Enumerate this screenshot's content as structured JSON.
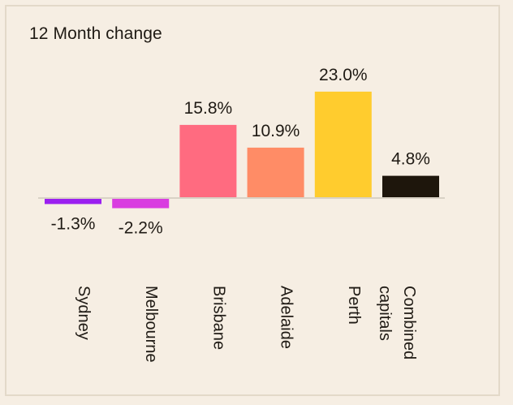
{
  "chart_data": {
    "type": "bar",
    "title": "12 Month change",
    "categories": [
      "Sydney",
      "Melbourne",
      "Brisbane",
      "Adelaide",
      "Perth",
      "Combined capitals"
    ],
    "category_lines": [
      [
        "Sydney"
      ],
      [
        "Melbourne"
      ],
      [
        "Brisbane"
      ],
      [
        "Adelaide"
      ],
      [
        "Perth"
      ],
      [
        "Combined",
        "capitals"
      ]
    ],
    "values": [
      -1.3,
      -2.2,
      15.8,
      10.9,
      23.0,
      4.8
    ],
    "value_labels": [
      "-1.3%",
      "-2.2%",
      "15.8%",
      "10.9%",
      "23.0%",
      "4.8%"
    ],
    "colors": [
      "#9b1ff0",
      "#d93de0",
      "#ff6b80",
      "#ff8c66",
      "#ffcc2e",
      "#1e160c"
    ],
    "zero_line_color": "#d9d2c6",
    "grid": false,
    "legend": "none",
    "xlabel": "",
    "ylabel": ""
  }
}
